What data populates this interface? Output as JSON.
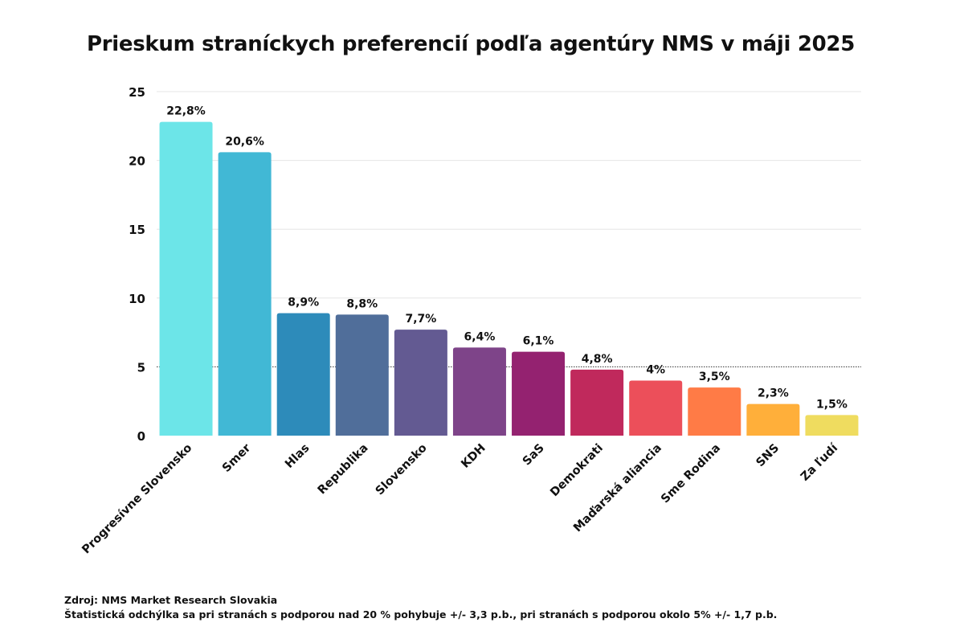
{
  "chart_data": {
    "type": "bar",
    "title": "Prieskum straníckych preferencií podľa agentúry NMS v máji 2025",
    "categories": [
      "Progresívne Slovensko",
      "Smer",
      "Hlas",
      "Republika",
      "Slovensko",
      "KDH",
      "SaS",
      "Demokrati",
      "Maďarská aliancia",
      "Sme Rodina",
      "SNS",
      "Za ľudí"
    ],
    "values": [
      22.8,
      20.6,
      8.9,
      8.8,
      7.7,
      6.4,
      6.1,
      4.8,
      4.0,
      3.5,
      2.3,
      1.5
    ],
    "value_labels": [
      "22,8%",
      "20,6%",
      "8,9%",
      "8,8%",
      "7,7%",
      "6,4%",
      "6,1%",
      "4,8%",
      "4%",
      "3,5%",
      "2,3%",
      "1,5%"
    ],
    "colors": [
      "#6ce5e8",
      "#41b8d5",
      "#2d8bba",
      "#506e9a",
      "#635a92",
      "#7e4489",
      "#942270",
      "#c0295c",
      "#ec4f5a",
      "#ff7b46",
      "#ffaf3a",
      "#efdc5f"
    ],
    "ylim": [
      0,
      25
    ],
    "yticks": [
      "0",
      "5",
      "10",
      "15",
      "20",
      "25"
    ],
    "threshold": 5,
    "grid": true,
    "xlabel": "",
    "ylabel": ""
  },
  "footer": {
    "source": "Zdroj: NMS Market Research Slovakia",
    "note": "Štatistická odchýlka sa pri stranách s podporou nad 20 % pohybuje +/- 3,3 p.b., pri stranách s podporou okolo 5% +/- 1,7 p.b."
  }
}
